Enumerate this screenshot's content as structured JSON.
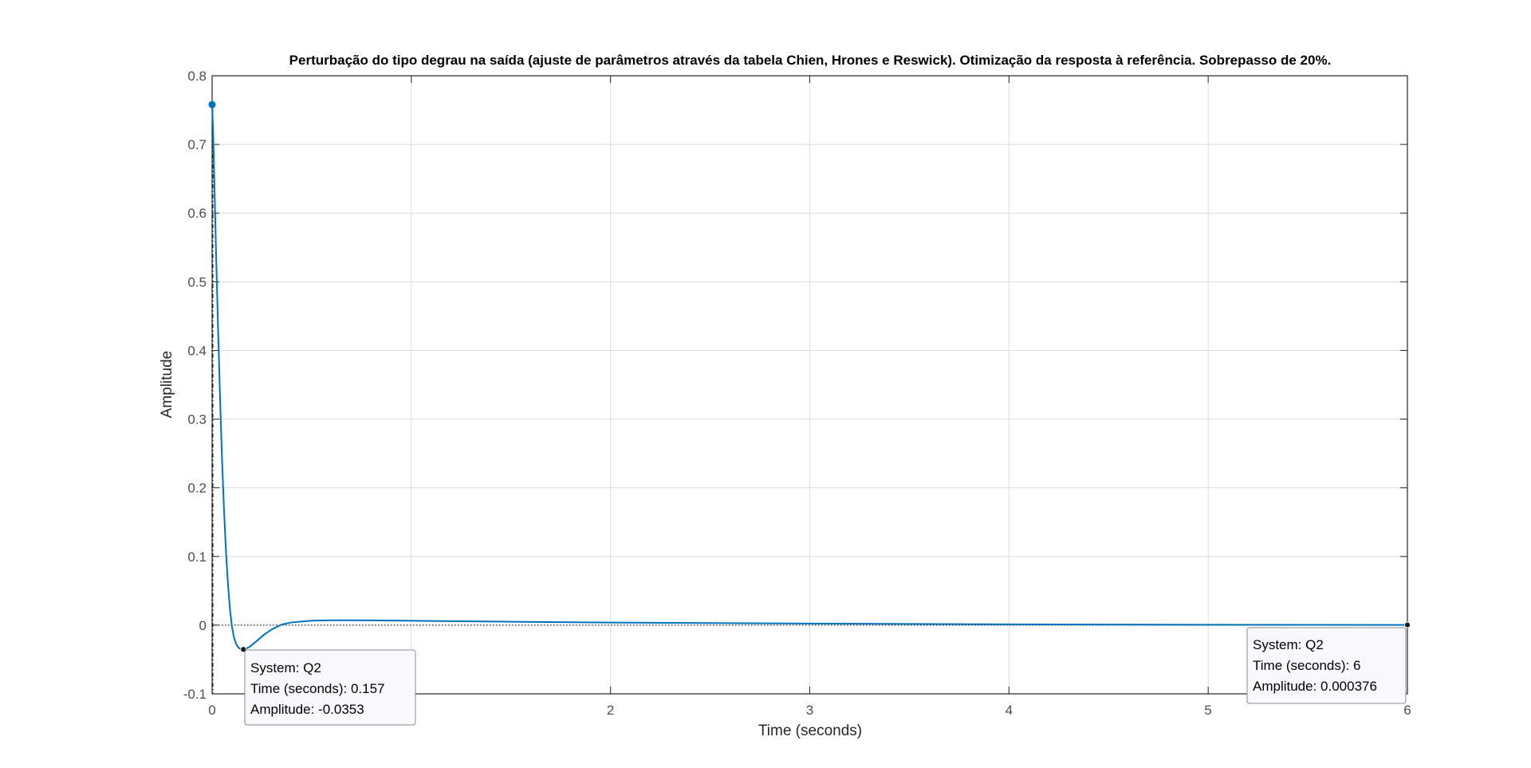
{
  "chart_data": {
    "type": "line",
    "title": "Perturbação do tipo degrau na saída (ajuste de parâmetros através da tabela Chien, Hrones e Reswick). Otimização da resposta à referência. Sobrepasso de 20%.",
    "xlabel": "Time (seconds)",
    "ylabel": "Amplitude",
    "xlim": [
      0,
      6
    ],
    "ylim": [
      -0.1,
      0.8
    ],
    "xticks": [
      0,
      1,
      2,
      3,
      4,
      5,
      6
    ],
    "xtick_labels": [
      "0",
      "",
      "2",
      "3",
      "4",
      "5",
      "6"
    ],
    "yticks": [
      -0.1,
      0,
      0.1,
      0.2,
      0.3,
      0.4,
      0.5,
      0.6,
      0.7,
      0.8
    ],
    "ytick_labels": [
      "-0.1",
      "0",
      "0.1",
      "0.2",
      "0.3",
      "0.4",
      "0.5",
      "0.6",
      "0.7",
      "0.8"
    ],
    "grid": true,
    "reference_line_y": 0,
    "series": [
      {
        "name": "Q2",
        "color": "#0072bd",
        "x": [
          0,
          0.005,
          0.01,
          0.02,
          0.03,
          0.04,
          0.05,
          0.06,
          0.07,
          0.08,
          0.09,
          0.1,
          0.11,
          0.12,
          0.13,
          0.14,
          0.15,
          0.157,
          0.17,
          0.19,
          0.22,
          0.26,
          0.3,
          0.35,
          0.4,
          0.5,
          0.6,
          0.7,
          0.8,
          1.0,
          1.2,
          1.5,
          2.0,
          2.5,
          3.0,
          3.5,
          4.0,
          4.5,
          5.0,
          5.5,
          6.0
        ],
        "y": [
          0.758,
          0.72,
          0.66,
          0.54,
          0.43,
          0.33,
          0.24,
          0.166,
          0.105,
          0.058,
          0.022,
          -0.003,
          -0.018,
          -0.027,
          -0.032,
          -0.0345,
          -0.0352,
          -0.0353,
          -0.0345,
          -0.031,
          -0.024,
          -0.014,
          -0.006,
          0.001,
          0.004,
          0.0065,
          0.0072,
          0.0072,
          0.007,
          0.0064,
          0.0058,
          0.005,
          0.0038,
          0.003,
          0.0023,
          0.0017,
          0.0012,
          0.0009,
          0.0006,
          0.0005,
          0.000376
        ]
      }
    ],
    "markers": [
      {
        "x": 0,
        "y": 0.758
      }
    ],
    "datatips": [
      {
        "x": 0.157,
        "y": -0.0353,
        "system": "System: Q2",
        "time": "Time (seconds): 0.157",
        "amplitude": "Amplitude: -0.0353"
      },
      {
        "x": 6,
        "y": 0.000376,
        "system": "System: Q2",
        "time": "Time (seconds): 6",
        "amplitude": "Amplitude: 0.000376"
      }
    ]
  }
}
